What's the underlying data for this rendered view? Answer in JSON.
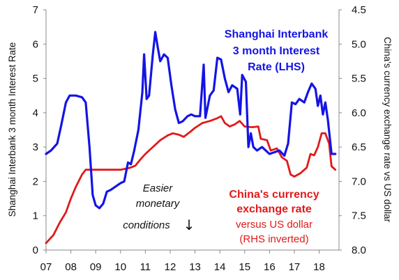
{
  "chart_data": {
    "type": "line",
    "x_ticks": [
      "07",
      "08",
      "09",
      "10",
      "11",
      "12",
      "13",
      "14",
      "15",
      "16",
      "17",
      "18"
    ],
    "left_axis": {
      "label": "Shanghai Interbank 3 month Interest Rate",
      "range": [
        0,
        7
      ],
      "ticks": [
        "0",
        "1",
        "2",
        "3",
        "4",
        "5",
        "6",
        "7"
      ]
    },
    "right_axis": {
      "label": "China's currency exchange rate vs US dollar",
      "range": [
        8.0,
        4.5
      ],
      "inverted": true,
      "ticks": [
        "4.5",
        "5.0",
        "5.5",
        "6.0",
        "6.5",
        "7.0",
        "7.5",
        "8.0"
      ]
    },
    "annotation": {
      "line1": "Easier",
      "line2": "monetary",
      "line3": "conditions",
      "arrow": "↓"
    },
    "series": [
      {
        "name_lines": [
          "Shanghai Interbank",
          "3 month Interest",
          "Rate (LHS)"
        ],
        "axis": "left",
        "color": "#1414e6",
        "points": [
          [
            2007.0,
            2.8
          ],
          [
            2007.2,
            2.9
          ],
          [
            2007.45,
            3.1
          ],
          [
            2007.6,
            3.6
          ],
          [
            2007.8,
            4.3
          ],
          [
            2007.95,
            4.5
          ],
          [
            2008.2,
            4.5
          ],
          [
            2008.45,
            4.45
          ],
          [
            2008.6,
            4.3
          ],
          [
            2008.75,
            3.0
          ],
          [
            2008.88,
            1.6
          ],
          [
            2009.0,
            1.3
          ],
          [
            2009.15,
            1.22
          ],
          [
            2009.3,
            1.35
          ],
          [
            2009.45,
            1.7
          ],
          [
            2009.6,
            1.75
          ],
          [
            2009.8,
            1.85
          ],
          [
            2010.0,
            1.95
          ],
          [
            2010.15,
            2.0
          ],
          [
            2010.3,
            2.55
          ],
          [
            2010.42,
            2.5
          ],
          [
            2010.55,
            2.9
          ],
          [
            2010.72,
            3.5
          ],
          [
            2010.88,
            4.6
          ],
          [
            2010.95,
            5.7
          ],
          [
            2011.05,
            4.4
          ],
          [
            2011.15,
            4.5
          ],
          [
            2011.3,
            5.7
          ],
          [
            2011.4,
            6.35
          ],
          [
            2011.5,
            5.9
          ],
          [
            2011.6,
            5.5
          ],
          [
            2011.75,
            5.7
          ],
          [
            2011.9,
            5.6
          ],
          [
            2012.05,
            4.8
          ],
          [
            2012.2,
            4.1
          ],
          [
            2012.35,
            3.7
          ],
          [
            2012.5,
            3.75
          ],
          [
            2012.7,
            3.9
          ],
          [
            2012.85,
            3.95
          ],
          [
            2013.0,
            3.9
          ],
          [
            2013.2,
            3.9
          ],
          [
            2013.35,
            5.4
          ],
          [
            2013.42,
            3.85
          ],
          [
            2013.6,
            4.5
          ],
          [
            2013.75,
            4.65
          ],
          [
            2013.9,
            5.6
          ],
          [
            2014.05,
            5.55
          ],
          [
            2014.2,
            5.0
          ],
          [
            2014.35,
            4.6
          ],
          [
            2014.5,
            4.8
          ],
          [
            2014.7,
            4.7
          ],
          [
            2014.82,
            3.95
          ],
          [
            2014.9,
            5.1
          ],
          [
            2015.05,
            4.9
          ],
          [
            2015.15,
            3.0
          ],
          [
            2015.25,
            3.4
          ],
          [
            2015.35,
            3.0
          ],
          [
            2015.5,
            2.9
          ],
          [
            2015.7,
            3.0
          ],
          [
            2015.85,
            2.9
          ],
          [
            2016.0,
            2.8
          ],
          [
            2016.2,
            2.85
          ],
          [
            2016.4,
            2.9
          ],
          [
            2016.6,
            2.75
          ],
          [
            2016.75,
            3.1
          ],
          [
            2016.9,
            4.3
          ],
          [
            2017.05,
            4.25
          ],
          [
            2017.2,
            4.4
          ],
          [
            2017.4,
            4.3
          ],
          [
            2017.55,
            4.6
          ],
          [
            2017.7,
            4.85
          ],
          [
            2017.85,
            4.7
          ],
          [
            2017.95,
            4.2
          ],
          [
            2018.05,
            4.5
          ],
          [
            2018.15,
            3.95
          ],
          [
            2018.25,
            4.3
          ],
          [
            2018.35,
            3.8
          ],
          [
            2018.5,
            2.8
          ],
          [
            2018.65,
            2.8
          ]
        ]
      },
      {
        "name_lines": [
          "China's currency",
          "exchange rate"
        ],
        "sub_lines": [
          "versus US dollar",
          "(RHS inverted)"
        ],
        "axis": "right",
        "color": "#e01a1a",
        "points": [
          [
            2007.0,
            7.9
          ],
          [
            2007.3,
            7.78
          ],
          [
            2007.55,
            7.6
          ],
          [
            2007.8,
            7.45
          ],
          [
            2008.0,
            7.25
          ],
          [
            2008.2,
            7.08
          ],
          [
            2008.45,
            6.9
          ],
          [
            2008.6,
            6.83
          ],
          [
            2008.85,
            6.83
          ],
          [
            2009.0,
            6.83
          ],
          [
            2009.5,
            6.83
          ],
          [
            2010.0,
            6.83
          ],
          [
            2010.4,
            6.8
          ],
          [
            2010.6,
            6.77
          ],
          [
            2010.8,
            6.68
          ],
          [
            2011.0,
            6.6
          ],
          [
            2011.3,
            6.5
          ],
          [
            2011.6,
            6.4
          ],
          [
            2011.9,
            6.33
          ],
          [
            2012.1,
            6.3
          ],
          [
            2012.35,
            6.32
          ],
          [
            2012.55,
            6.35
          ],
          [
            2012.8,
            6.28
          ],
          [
            2013.0,
            6.22
          ],
          [
            2013.3,
            6.15
          ],
          [
            2013.6,
            6.12
          ],
          [
            2013.9,
            6.08
          ],
          [
            2014.05,
            6.05
          ],
          [
            2014.2,
            6.15
          ],
          [
            2014.4,
            6.2
          ],
          [
            2014.6,
            6.17
          ],
          [
            2014.8,
            6.12
          ],
          [
            2015.0,
            6.2
          ],
          [
            2015.3,
            6.21
          ],
          [
            2015.55,
            6.2
          ],
          [
            2015.65,
            6.38
          ],
          [
            2015.9,
            6.4
          ],
          [
            2016.05,
            6.55
          ],
          [
            2016.3,
            6.52
          ],
          [
            2016.5,
            6.65
          ],
          [
            2016.7,
            6.7
          ],
          [
            2016.85,
            6.9
          ],
          [
            2017.0,
            6.93
          ],
          [
            2017.25,
            6.88
          ],
          [
            2017.5,
            6.8
          ],
          [
            2017.65,
            6.6
          ],
          [
            2017.8,
            6.62
          ],
          [
            2017.95,
            6.5
          ],
          [
            2018.1,
            6.3
          ],
          [
            2018.25,
            6.3
          ],
          [
            2018.4,
            6.45
          ],
          [
            2018.5,
            6.78
          ],
          [
            2018.65,
            6.83
          ]
        ]
      }
    ]
  }
}
